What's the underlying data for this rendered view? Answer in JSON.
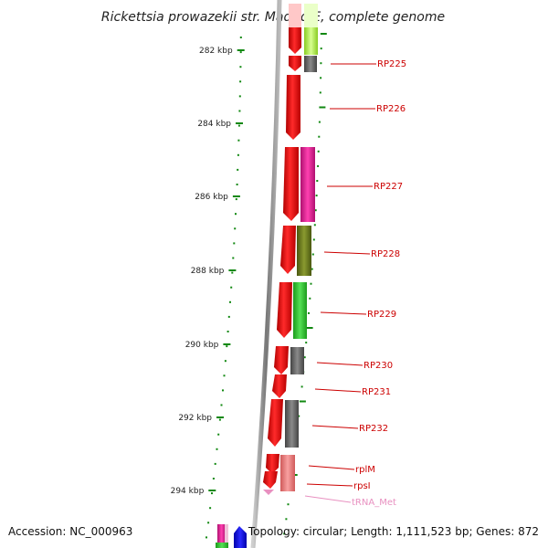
{
  "title": "Rickettsia prowazekii str. Madrid E, complete genome",
  "footer": {
    "accession": "Accession: NC_000963",
    "summary": "Topology: circular; Length: 1,111,523 bp; Genes: 872"
  },
  "ruler": {
    "labels": [
      "282 kbp",
      "284 kbp",
      "286 kbp",
      "288 kbp",
      "290 kbp",
      "292 kbp",
      "294 kbp"
    ]
  },
  "genes": [
    {
      "name": "RP225",
      "color": "#cc0000"
    },
    {
      "name": "RP226",
      "color": "#cc0000"
    },
    {
      "name": "RP227",
      "color": "#cc0000"
    },
    {
      "name": "RP228",
      "color": "#cc0000"
    },
    {
      "name": "RP229",
      "color": "#cc0000"
    },
    {
      "name": "RP230",
      "color": "#cc0000"
    },
    {
      "name": "RP231",
      "color": "#cc0000"
    },
    {
      "name": "RP232",
      "color": "#cc0000"
    },
    {
      "name": "rplM",
      "color": "#cc0000"
    },
    {
      "name": "rpsI",
      "color": "#cc0000"
    },
    {
      "name": "tRNA_Met",
      "color": "#e890c0"
    }
  ],
  "colors": {
    "cds": "#ff0000",
    "backbone": "#888888",
    "ruler_ticks": "#118811",
    "cog_pink": "#e6289b",
    "cog_olive": "#6b7a1a",
    "cog_green": "#33cc33",
    "cog_gray": "#666666",
    "cog_salmon": "#f08080",
    "cog_lime": "#99dd33",
    "trna": "#e890c0"
  }
}
